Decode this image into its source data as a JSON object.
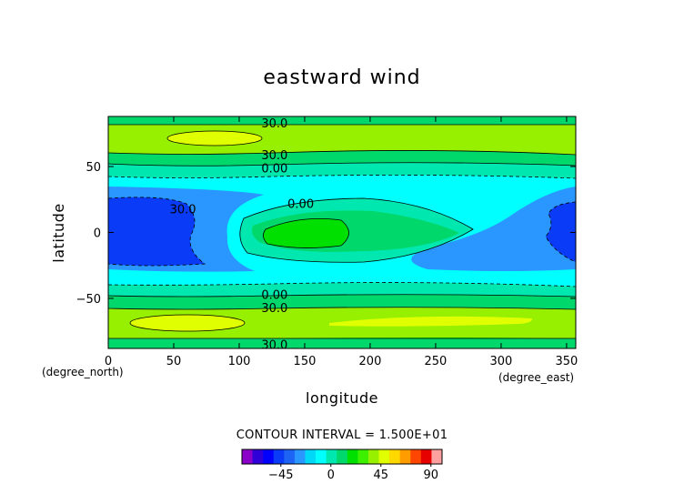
{
  "chart_data": {
    "type": "contour",
    "title": "eastward wind",
    "xlabel": "longitude",
    "ylabel": "latitude",
    "x_unit": "(degree_east)",
    "y_unit": "(degree_north)",
    "xlim": [
      0,
      357
    ],
    "ylim": [
      -88,
      88
    ],
    "x_ticks": [
      "0",
      "50",
      "100",
      "150",
      "200",
      "250",
      "300",
      "350"
    ],
    "x_tick_values": [
      0,
      50,
      100,
      150,
      200,
      250,
      300,
      350
    ],
    "y_ticks": [
      "50",
      "0",
      "−50"
    ],
    "y_tick_values": [
      50,
      0,
      -50
    ],
    "contour_labels": [
      {
        "text": "30.0",
        "x": 127,
        "y": 83
      },
      {
        "text": "30.0",
        "x": 127,
        "y": 59
      },
      {
        "text": "0.00",
        "x": 127,
        "y": 49
      },
      {
        "text": "30.0",
        "x": 57,
        "y": 18
      },
      {
        "text": "0.00",
        "x": 147,
        "y": 22
      },
      {
        "text": "0.00",
        "x": 127,
        "y": -47
      },
      {
        "text": "30.0",
        "x": 127,
        "y": -57
      },
      {
        "text": "30.0",
        "x": 127,
        "y": -85
      }
    ],
    "contour_interval_text": "CONTOUR INTERVAL = 1.500E+01",
    "colorbar": {
      "tick_labels": [
        "−45",
        "0",
        "45",
        "90"
      ],
      "tick_values": [
        -45,
        0,
        45,
        90
      ],
      "min": -80,
      "max": 100,
      "colors": [
        "#8a00c8",
        "#3000d8",
        "#0000ff",
        "#0a3cf8",
        "#1e64f4",
        "#2a96ff",
        "#00d8f8",
        "#00ffff",
        "#00e8b0",
        "#00d86c",
        "#00e000",
        "#3cf000",
        "#96f000",
        "#e0ff00",
        "#ffd800",
        "#ff9c00",
        "#ff4600",
        "#e60000",
        "#ffa0a0"
      ]
    },
    "palette": {
      "strong_easterly": "#0a3cf8",
      "easterly": "#2a96ff",
      "weak_easterly": "#00ffff",
      "weak_westerly": "#00e8b0",
      "westerly": "#00e000",
      "moderate_westerly": "#00d86c",
      "strong_westerly": "#96f000",
      "jet_core": "#e0ff00"
    }
  }
}
